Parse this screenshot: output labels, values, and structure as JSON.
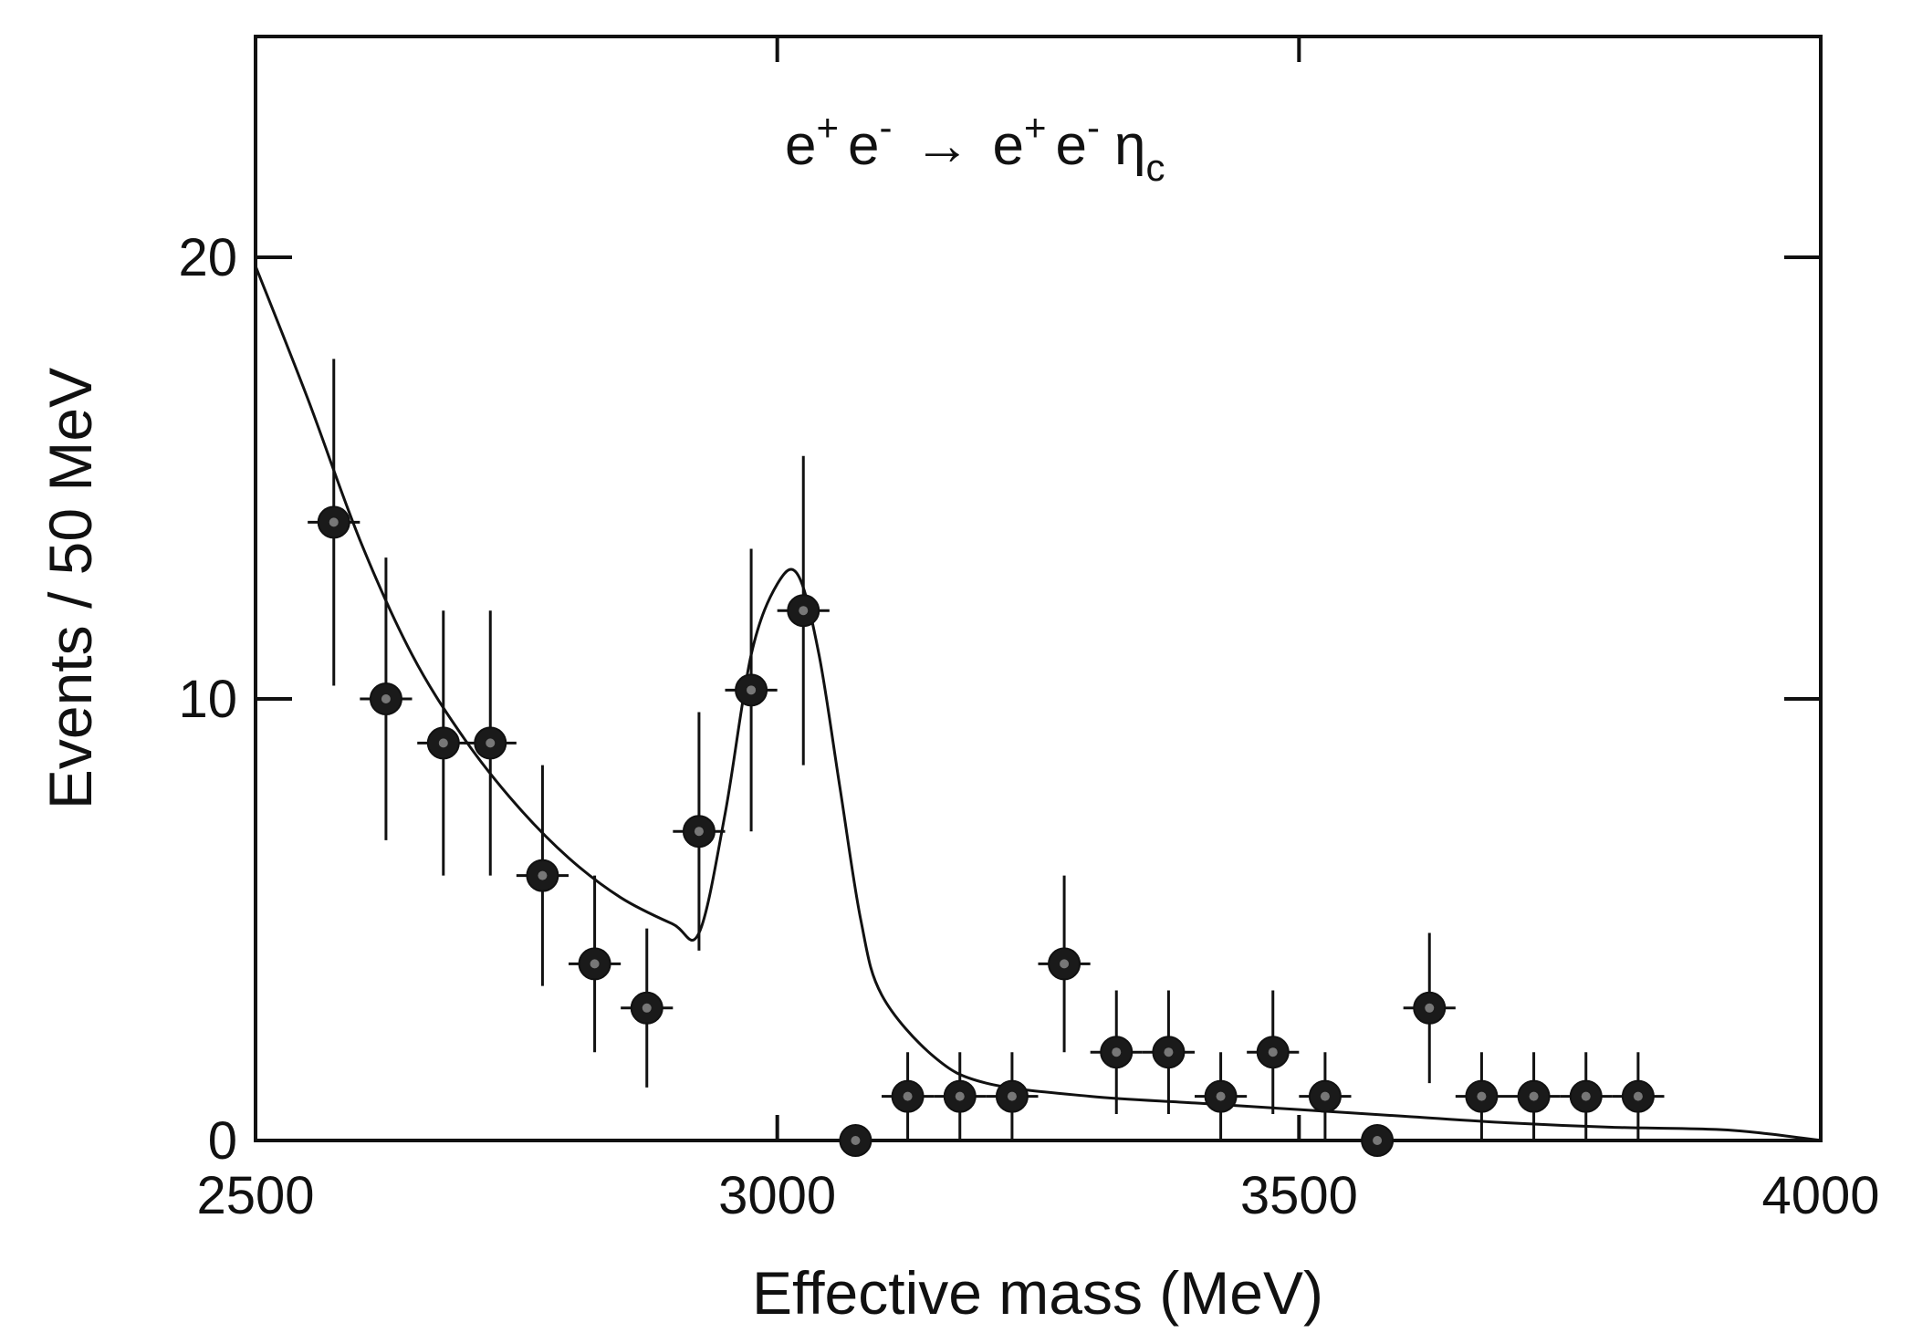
{
  "chart_data": {
    "type": "scatter",
    "title": "",
    "annotation": {
      "e": "e",
      "plus": "+",
      "minus": "-",
      "arrow": "→",
      "eta": "η",
      "eta_sub": "c"
    },
    "xlabel": "Effective mass (MeV)",
    "ylabel": "Events / 50 MeV",
    "xlim": [
      2500,
      4000
    ],
    "ylim": [
      0,
      25
    ],
    "x_ticks": [
      2500,
      3000,
      3500,
      4000
    ],
    "y_ticks": [
      0,
      10,
      20
    ],
    "grid": false,
    "legend": "none",
    "series": [
      {
        "kind": "points-with-error-bars",
        "x": [
          2575,
          2625,
          2680,
          2725,
          2775,
          2825,
          2875,
          2925,
          2975,
          3025,
          3075,
          3125,
          3175,
          3225,
          3275,
          3325,
          3375,
          3425,
          3475,
          3525,
          3575,
          3625,
          3675,
          3725,
          3775,
          3825
        ],
        "y": [
          14,
          10,
          9,
          9,
          6,
          4,
          3,
          7,
          10.2,
          12,
          0,
          1,
          1,
          1,
          4,
          2,
          2,
          1,
          2,
          1,
          0,
          3,
          1,
          1,
          1,
          1
        ],
        "yerr": [
          3.7,
          3.2,
          3.0,
          3.0,
          2.5,
          2.0,
          1.8,
          2.7,
          3.2,
          3.5,
          0,
          1.0,
          1.0,
          1.0,
          2.0,
          1.4,
          1.4,
          1.0,
          1.4,
          1.0,
          0,
          1.7,
          1.0,
          1.0,
          1.0,
          1.0
        ]
      },
      {
        "kind": "fit-curve",
        "x": [
          2500,
          2550,
          2600,
          2650,
          2700,
          2750,
          2800,
          2850,
          2900,
          2925,
          2950,
          2975,
          3000,
          3020,
          3040,
          3060,
          3080,
          3100,
          3150,
          3200,
          3300,
          3400,
          3500,
          3600,
          3700,
          3800,
          3900,
          3950,
          4000
        ],
        "y": [
          19.8,
          16.8,
          13.6,
          11.0,
          9.1,
          7.6,
          6.4,
          5.5,
          4.9,
          4.7,
          7.4,
          11.0,
          12.6,
          12.8,
          11.0,
          8.0,
          5.0,
          3.3,
          1.9,
          1.3,
          1.0,
          0.85,
          0.7,
          0.55,
          0.4,
          0.3,
          0.25,
          0.15,
          0.0
        ]
      }
    ]
  }
}
